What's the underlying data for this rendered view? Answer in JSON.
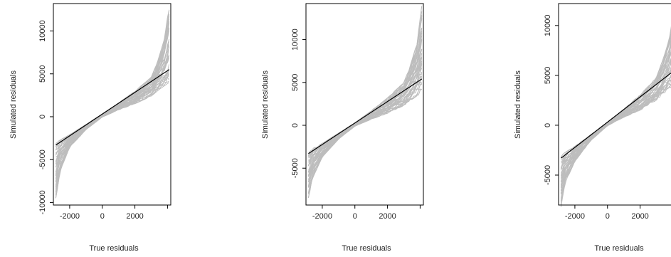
{
  "chart_data": [
    {
      "type": "line",
      "xlabel": "True residuals",
      "ylabel": "Simulated residuals",
      "xlim": [
        -3000,
        4200
      ],
      "ylim": [
        -10300,
        13200
      ],
      "xticks": [
        -2000,
        0,
        2000,
        4000
      ],
      "xtick_labels": [
        "-2000",
        "0",
        "2000",
        ""
      ],
      "yticks": [
        -10000,
        -5000,
        0,
        5000,
        10000
      ],
      "ytick_labels": [
        "-10000",
        "-5000",
        "0",
        "5000",
        "10000"
      ],
      "grid": false,
      "colors": {
        "simulated": "#bdbdbd",
        "reference": "#000000"
      },
      "series": [
        {
          "role": "reference",
          "x": [
            -2850,
            4100
          ],
          "y": [
            -3300,
            5500
          ]
        },
        {
          "role": "simulated-envelope-upper",
          "x": [
            -2850,
            -2000,
            -1000,
            0,
            1000,
            2000,
            3000,
            3400,
            3800,
            4100
          ],
          "y": [
            -3000,
            -2100,
            -900,
            300,
            1600,
            3000,
            4600,
            6500,
            9000,
            12900
          ]
        },
        {
          "role": "simulated-envelope-lower",
          "x": [
            -2850,
            -2600,
            -2000,
            -1000,
            0,
            1000,
            2000,
            3000,
            3500,
            4100
          ],
          "y": [
            -9700,
            -6500,
            -3600,
            -1500,
            -50,
            800,
            1500,
            2400,
            3200,
            4000
          ]
        }
      ]
    },
    {
      "type": "line",
      "xlabel": "True residuals",
      "ylabel": "Simulated residuals",
      "xlim": [
        -3000,
        4200
      ],
      "ylim": [
        -9300,
        14200
      ],
      "xticks": [
        -2000,
        0,
        2000,
        4000
      ],
      "xtick_labels": [
        "-2000",
        "0",
        "2000",
        ""
      ],
      "yticks": [
        -5000,
        0,
        5000,
        10000
      ],
      "ytick_labels": [
        "-5000",
        "0",
        "5000",
        "10000"
      ],
      "grid": false,
      "colors": {
        "simulated": "#bdbdbd",
        "reference": "#000000"
      },
      "series": [
        {
          "role": "reference",
          "x": [
            -2850,
            4100
          ],
          "y": [
            -3300,
            5400
          ]
        },
        {
          "role": "simulated-envelope-upper",
          "x": [
            -2850,
            -2000,
            -1000,
            0,
            1000,
            2000,
            3000,
            3400,
            3800,
            4100
          ],
          "y": [
            -3000,
            -2100,
            -900,
            300,
            1700,
            3200,
            5000,
            7000,
            9500,
            13900
          ]
        },
        {
          "role": "simulated-envelope-lower",
          "x": [
            -2850,
            -2600,
            -2000,
            -1000,
            0,
            1000,
            2000,
            3000,
            3500,
            4100
          ],
          "y": [
            -8800,
            -6200,
            -3700,
            -1600,
            -100,
            700,
            1400,
            2300,
            3000,
            3800
          ]
        }
      ]
    },
    {
      "type": "line",
      "xlabel": "True residuals",
      "ylabel": "Simulated residuals",
      "xlim": [
        -3000,
        4200
      ],
      "ylim": [
        -8000,
        12200
      ],
      "xticks": [
        -2000,
        0,
        2000,
        4000
      ],
      "xtick_labels": [
        "-2000",
        "0",
        "2000",
        ""
      ],
      "yticks": [
        -5000,
        0,
        5000,
        10000
      ],
      "ytick_labels": [
        "-5000",
        "0",
        "5000",
        "10000"
      ],
      "grid": false,
      "colors": {
        "simulated": "#bdbdbd",
        "reference": "#000000"
      },
      "series": [
        {
          "role": "reference",
          "x": [
            -2850,
            4100
          ],
          "y": [
            -3300,
            5500
          ]
        },
        {
          "role": "simulated-envelope-upper",
          "x": [
            -2850,
            -2000,
            -1000,
            0,
            1000,
            2000,
            3000,
            3400,
            3800,
            4100
          ],
          "y": [
            -3000,
            -2100,
            -900,
            300,
            1600,
            3100,
            4800,
            6600,
            8800,
            11800
          ]
        },
        {
          "role": "simulated-envelope-lower",
          "x": [
            -2850,
            -2600,
            -2000,
            -1000,
            0,
            1000,
            2000,
            3000,
            3500,
            4100
          ],
          "y": [
            -8200,
            -5800,
            -3600,
            -1500,
            -50,
            800,
            1500,
            2500,
            3200,
            4000
          ]
        }
      ]
    }
  ]
}
